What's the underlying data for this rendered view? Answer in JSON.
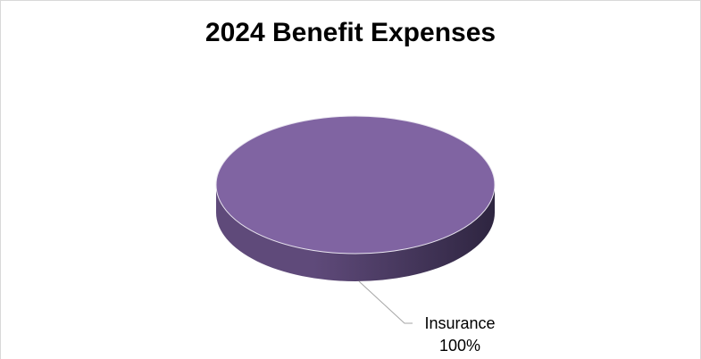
{
  "chart_data": {
    "type": "pie",
    "title": "2024 Benefit Expenses",
    "style": "3d",
    "slices": [
      {
        "label": "Insurance",
        "value": 100,
        "percent_label": "100%",
        "color": "#8064a2"
      }
    ],
    "colors": {
      "top": "#8064a2",
      "side_light": "#5f4a7a",
      "side_dark": "#2e2540",
      "edge": "#e8e4ef",
      "leader": "#a6a6a6"
    }
  }
}
